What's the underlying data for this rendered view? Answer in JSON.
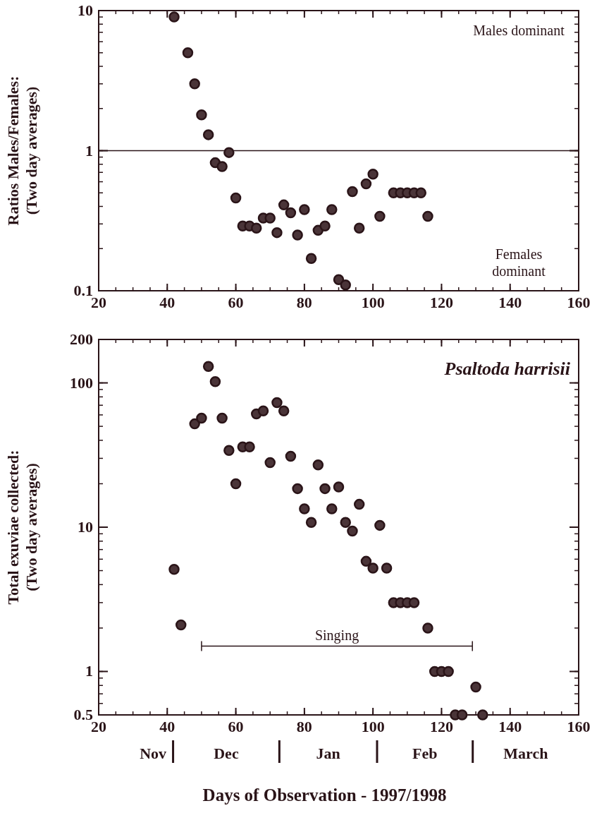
{
  "chart_data": [
    {
      "type": "scatter",
      "ylabel": "Ratios Males/Females:\n(Two day averages)",
      "log": "y",
      "xlim": [
        20,
        160
      ],
      "xticks": [
        20,
        40,
        60,
        80,
        100,
        120,
        140,
        160
      ],
      "ylim": [
        0.1,
        10
      ],
      "yticks": [
        0.1,
        1,
        10
      ],
      "marker": "circle",
      "grid": false,
      "annotations": [
        "Males dominant",
        "Females\ndominant"
      ],
      "ref_lines": [
        {
          "axis": "y",
          "value": 1,
          "color": "#2a1418"
        }
      ],
      "series": [
        {
          "color": "#4a3438",
          "x": [
            42,
            46,
            48,
            50,
            52,
            54,
            56,
            58,
            60,
            62,
            64,
            66,
            68,
            70,
            72,
            74,
            76,
            78,
            80,
            82,
            84,
            86,
            88,
            90,
            92,
            94,
            96,
            98,
            100,
            102,
            106,
            108,
            110,
            112,
            114,
            116
          ],
          "values": [
            9,
            5,
            3,
            1.8,
            1.3,
            0.82,
            0.77,
            0.97,
            0.46,
            0.29,
            0.29,
            0.28,
            0.33,
            0.33,
            0.26,
            0.41,
            0.36,
            0.25,
            0.38,
            0.17,
            0.27,
            0.29,
            0.38,
            0.12,
            0.11,
            0.51,
            0.28,
            0.58,
            0.68,
            0.34,
            0.5,
            0.5,
            0.5,
            0.5,
            0.5,
            0.34
          ]
        }
      ]
    },
    {
      "type": "scatter",
      "title": "Psaltoda harrisii",
      "xlabel": "Days of Observation - 1997/1998",
      "ylabel": "Total exuviae collected:\n(Two day averages)",
      "log": "y",
      "xlim": [
        20,
        160
      ],
      "xticks": [
        20,
        40,
        60,
        80,
        100,
        120,
        140,
        160
      ],
      "ylim": [
        0.5,
        200
      ],
      "yticks": [
        0.5,
        1,
        10,
        100,
        200
      ],
      "marker": "circle",
      "grid": false,
      "annotations": [
        "Nov",
        "Dec",
        "Jan",
        "Feb",
        "March"
      ],
      "series": [
        {
          "type": "line",
          "name": "Singing",
          "marker": "none",
          "color": "#2a1418",
          "x": [
            50,
            129
          ],
          "values": [
            1.5,
            1.5
          ]
        },
        {
          "color": "#4a3438",
          "x": [
            42,
            44,
            48,
            50,
            52,
            54,
            56,
            58,
            60,
            62,
            64,
            66,
            68,
            70,
            72,
            74,
            76,
            78,
            80,
            82,
            84,
            86,
            88,
            90,
            92,
            94,
            96,
            98,
            100,
            102,
            104,
            106,
            108,
            110,
            112,
            116,
            118,
            120,
            122,
            124,
            126,
            130,
            132
          ],
          "values": [
            5.1,
            2.1,
            52,
            57,
            130,
            102,
            57,
            34,
            20,
            36,
            36,
            61,
            64,
            28,
            73,
            64,
            31,
            18.5,
            13.4,
            10.8,
            27,
            18.5,
            13.4,
            19,
            10.8,
            9.4,
            14.4,
            5.8,
            5.2,
            10.3,
            5.2,
            3,
            3,
            3,
            3,
            2,
            1,
            1,
            1,
            0.5,
            0.5,
            0.78,
            0.5
          ]
        }
      ]
    }
  ]
}
